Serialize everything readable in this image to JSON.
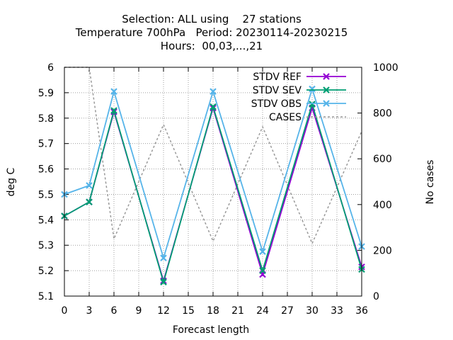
{
  "chart_data": {
    "type": "line",
    "title_lines": [
      "Selection: ALL using    27 stations",
      "Temperature 700hPa   Period: 20230114-20230215",
      "Hours:  00,03,...,21"
    ],
    "xlabel": "Forecast length",
    "ylabel": "deg C",
    "y2label": "No cases",
    "x": [
      0,
      3,
      6,
      12,
      18,
      24,
      30,
      36
    ],
    "xticks": [
      "0",
      "3",
      "6",
      "9",
      "12",
      "15",
      "18",
      "21",
      "24",
      "27",
      "30",
      "33",
      "36"
    ],
    "xlim": [
      0,
      36
    ],
    "yticks": [
      "5.1",
      "5.2",
      "5.3",
      "5.4",
      "5.5",
      "5.6",
      "5.7",
      "5.8",
      "5.9",
      "6"
    ],
    "ylim": [
      5.1,
      6.0
    ],
    "y2ticks": [
      "0",
      "200",
      "400",
      "600",
      "800",
      "1000"
    ],
    "y2lim": [
      0,
      1000
    ],
    "grid": true,
    "legend_position": "top-right",
    "series": [
      {
        "name": "STDV REF",
        "axis": "left",
        "color": "#9400d3",
        "marker": "x",
        "dash": "solid",
        "values": [
          5.415,
          5.47,
          5.825,
          5.16,
          5.84,
          5.185,
          5.84,
          5.215
        ]
      },
      {
        "name": "STDV SEV",
        "axis": "left",
        "color": "#009e73",
        "marker": "x",
        "dash": "solid",
        "values": [
          5.415,
          5.47,
          5.83,
          5.155,
          5.845,
          5.2,
          5.855,
          5.205
        ]
      },
      {
        "name": "STDV OBS",
        "axis": "left",
        "color": "#56b4e9",
        "marker": "x",
        "dash": "solid",
        "values": [
          5.5,
          5.535,
          5.905,
          5.25,
          5.905,
          5.275,
          5.915,
          5.295
        ]
      },
      {
        "name": "CASES",
        "axis": "right",
        "color": "#999999",
        "marker": "none",
        "dash": "dotted",
        "x": [
          0,
          3,
          6,
          12,
          18,
          24,
          30,
          36
        ],
        "values": [
          1000,
          1000,
          250,
          750,
          240,
          740,
          230,
          720
        ]
      }
    ]
  }
}
